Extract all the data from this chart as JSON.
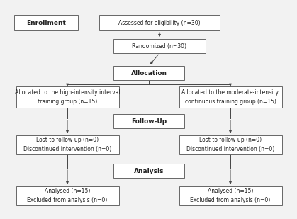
{
  "bg_color": "#f2f2f2",
  "box_fc": "#ffffff",
  "box_ec": "#666666",
  "text_color": "#222222",
  "arrow_color": "#444444",
  "enrollment_label": "Enrollment",
  "allocation_label": "Allocation",
  "followup_label": "Follow-Up",
  "analysis_label": "Analysis",
  "eligibility_text": "Assessed for eligibility (n=30)",
  "randomized_text": "Randomized (n=30)",
  "left_alloc_text": "Allocated to the high-intensity interval\ntraining group (n=15)",
  "right_alloc_text": "Allocated to the moderate-intensity\ncontinuous training group (n=15)",
  "left_followup_text": "Lost to follow-up (n=0)\nDiscontinued intervention (n=0)",
  "right_followup_text": "Lost to follow-up (n=0)\nDiscontinued intervention (n=0)",
  "left_analysis_text": "Analysed (n=15)\nExcluded from analysis (n=0)",
  "right_analysis_text": "Analysed (n=15)\nExcluded from analysis (n=0)",
  "fs": 5.5,
  "bfs": 6.5,
  "lw": 0.7
}
